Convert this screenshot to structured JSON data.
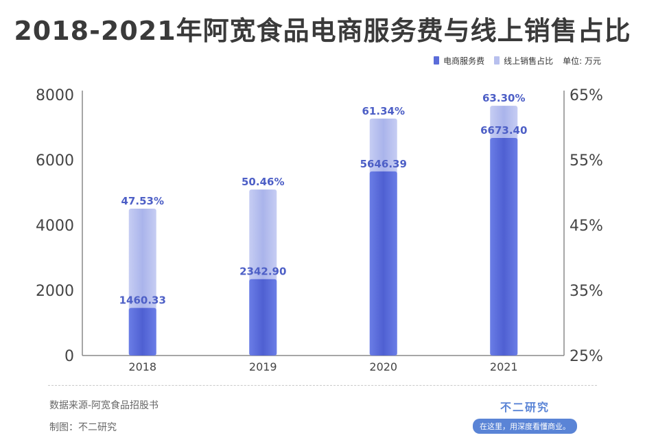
{
  "title": "2018-2021年阿宽食品电商服务费与线上销售占比",
  "legend": {
    "series1": "电商服务费",
    "series2": "线上销售占比",
    "unit": "单位: 万元"
  },
  "colors": {
    "series1": "#5b6cd9",
    "series2": "#b8c0ee",
    "label": "#4d5fc6",
    "axis": "#444444"
  },
  "chart_data": {
    "type": "bar",
    "categories": [
      "2018",
      "2019",
      "2020",
      "2021"
    ],
    "series": [
      {
        "name": "电商服务费",
        "values": [
          1460.33,
          2342.9,
          5646.39,
          6673.4
        ],
        "labels": [
          "1460.33",
          "2342.90",
          "5646.39",
          "6673.40"
        ],
        "axis": "left"
      },
      {
        "name": "线上销售占比",
        "values": [
          47.53,
          50.46,
          61.34,
          63.3
        ],
        "labels": [
          "47.53%",
          "50.46%",
          "61.34%",
          "63.30%"
        ],
        "axis": "right"
      }
    ],
    "y_left": {
      "ticks": [
        "0",
        "2000",
        "4000",
        "6000",
        "8000"
      ],
      "range": [
        0,
        8000
      ]
    },
    "y_right": {
      "ticks": [
        "25%",
        "35%",
        "45%",
        "55%",
        "65%"
      ],
      "range": [
        25,
        65
      ]
    },
    "grid": false,
    "legend_position": "top-right"
  },
  "footer": {
    "source": "数据来源-阿宽食品招股书",
    "maker": "制图：不二研究",
    "brand_name": "不二研究",
    "brand_slogan": "在这里，用深度看懂商业。"
  }
}
